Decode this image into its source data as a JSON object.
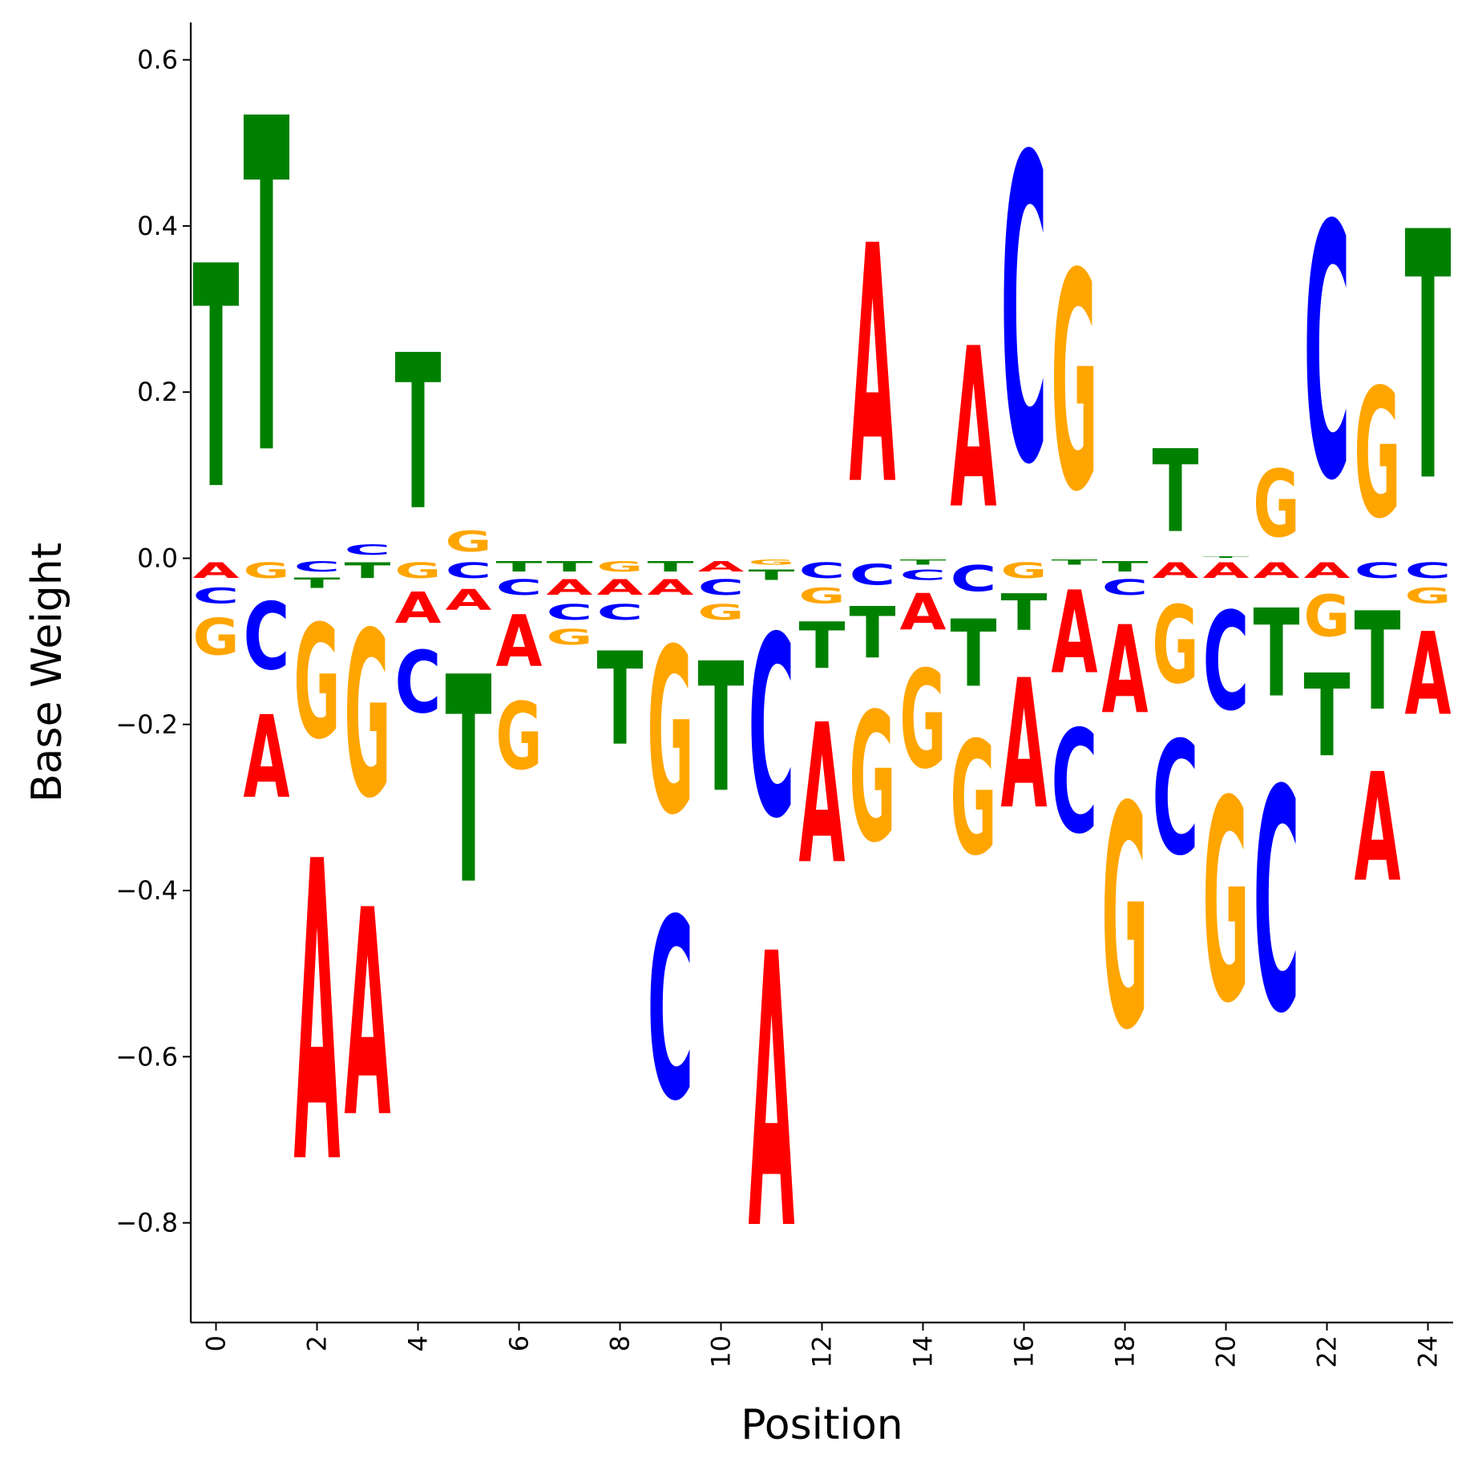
{
  "chart_data": {
    "type": "sequence-logo",
    "xlabel": "Position",
    "ylabel": "Base Weight",
    "xlim": [
      -0.5,
      24.5
    ],
    "ylim": [
      -0.92,
      0.645
    ],
    "xticks": [
      0,
      2,
      4,
      6,
      8,
      10,
      12,
      14,
      16,
      18,
      20,
      22,
      24
    ],
    "yticks": [
      -0.8,
      -0.6,
      -0.4,
      -0.2,
      0.0,
      0.2,
      0.4,
      0.6
    ],
    "ytick_labels": [
      "−0.8",
      "−0.6",
      "−0.4",
      "−0.2",
      "0.0",
      "0.2",
      "0.4",
      "0.6"
    ],
    "grid": false,
    "colors": {
      "A": "#ff0000",
      "C": "#0000ff",
      "G": "#ffa500",
      "T": "#008000"
    },
    "weights": [
      {
        "position": 0,
        "A": -0.03,
        "C": -0.03,
        "G": -0.07,
        "T": 0.43
      },
      {
        "position": 1,
        "A": -0.16,
        "C": -0.13,
        "G": -0.03,
        "T": 0.645
      },
      {
        "position": 2,
        "A": -0.58,
        "C": -0.02,
        "G": -0.22,
        "T": -0.02
      },
      {
        "position": 3,
        "A": -0.4,
        "C": 0.02,
        "G": -0.32,
        "T": -0.03
      },
      {
        "position": 4,
        "A": -0.06,
        "C": -0.12,
        "G": -0.03,
        "T": 0.3
      },
      {
        "position": 5,
        "A": -0.04,
        "C": -0.03,
        "G": 0.04,
        "T": -0.4
      },
      {
        "position": 6,
        "A": -0.1,
        "C": -0.03,
        "G": -0.13,
        "T": -0.02
      },
      {
        "position": 7,
        "A": -0.03,
        "C": -0.03,
        "G": -0.03,
        "T": -0.02
      },
      {
        "position": 8,
        "A": -0.03,
        "C": -0.03,
        "G": -0.02,
        "T": -0.18
      },
      {
        "position": 9,
        "A": -0.03,
        "C": -0.35,
        "G": -0.32,
        "T": -0.02
      },
      {
        "position": 10,
        "A": -0.02,
        "C": -0.03,
        "G": -0.03,
        "T": -0.25
      },
      {
        "position": 11,
        "A": -0.53,
        "C": -0.35,
        "G": -0.01,
        "T": -0.02
      },
      {
        "position": 12,
        "A": -0.27,
        "C": -0.03,
        "G": -0.03,
        "T": -0.09
      },
      {
        "position": 13,
        "A": 0.46,
        "C": -0.04,
        "G": -0.25,
        "T": -0.1
      },
      {
        "position": 14,
        "A": -0.07,
        "C": -0.02,
        "G": -0.19,
        "T": -0.01
      },
      {
        "position": 15,
        "A": 0.31,
        "C": -0.05,
        "G": -0.22,
        "T": -0.13
      },
      {
        "position": 16,
        "A": -0.25,
        "C": 0.59,
        "G": -0.03,
        "T": -0.07
      },
      {
        "position": 17,
        "A": -0.16,
        "C": -0.2,
        "G": 0.42,
        "T": -0.01
      },
      {
        "position": 18,
        "A": -0.17,
        "C": -0.03,
        "G": -0.43,
        "T": -0.02
      },
      {
        "position": 19,
        "A": -0.03,
        "C": -0.22,
        "G": -0.15,
        "T": 0.16
      },
      {
        "position": 20,
        "A": -0.03,
        "C": -0.19,
        "G": -0.39,
        "T": 0.003
      },
      {
        "position": 21,
        "A": -0.03,
        "C": -0.43,
        "G": 0.13,
        "T": -0.17
      },
      {
        "position": 22,
        "A": -0.03,
        "C": 0.49,
        "G": -0.08,
        "T": -0.16
      },
      {
        "position": 23,
        "A": -0.21,
        "C": -0.03,
        "G": 0.25,
        "T": -0.19
      },
      {
        "position": 24,
        "A": -0.16,
        "C": -0.03,
        "G": -0.03,
        "T": 0.48
      }
    ]
  }
}
